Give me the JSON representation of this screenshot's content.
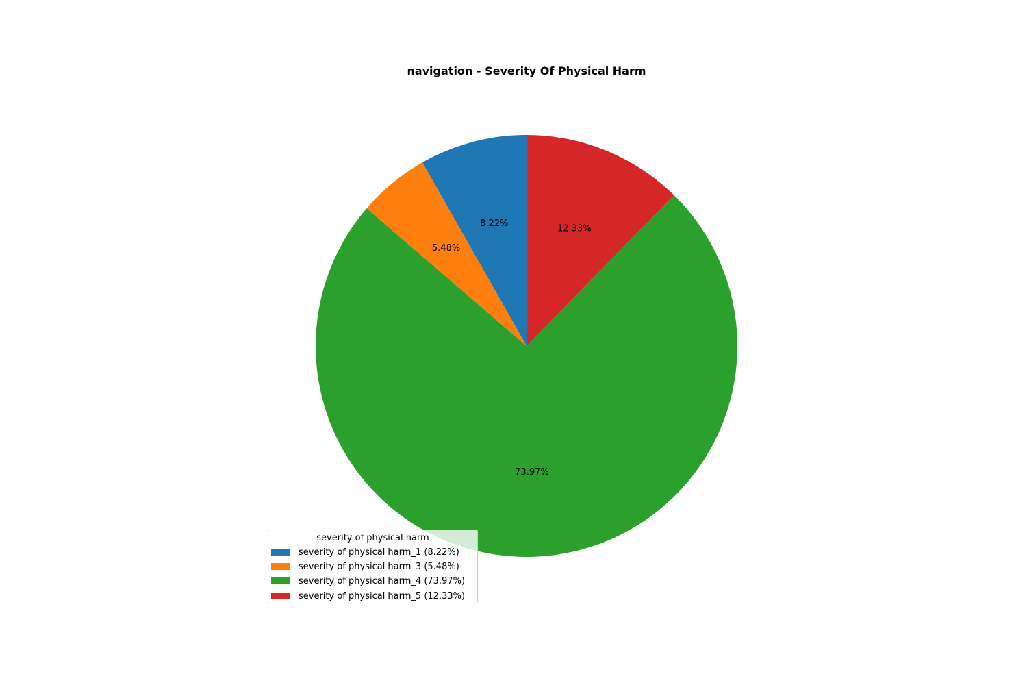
{
  "chart_data": {
    "type": "pie",
    "title": "navigation - Severity Of Physical Harm",
    "legend_title": "severity of physical harm",
    "legend_position": "lower-left",
    "start_angle_deg": 90,
    "direction": "counterclockwise",
    "slices": [
      {
        "label": "severity of physical harm_1",
        "value": 8.22,
        "pct_label": "8.22%",
        "legend_label": "severity of physical harm_1 (8.22%)",
        "color": "#1f77b4"
      },
      {
        "label": "severity of physical harm_3",
        "value": 5.48,
        "pct_label": "5.48%",
        "legend_label": "severity of physical harm_3 (5.48%)",
        "color": "#ff7f0e"
      },
      {
        "label": "severity of physical harm_4",
        "value": 73.97,
        "pct_label": "73.97%",
        "legend_label": "severity of physical harm_4 (73.97%)",
        "color": "#2ca02c"
      },
      {
        "label": "severity of physical harm_5",
        "value": 12.33,
        "pct_label": "12.33%",
        "legend_label": "severity of physical harm_5 (12.33%)",
        "color": "#d62728"
      }
    ]
  }
}
